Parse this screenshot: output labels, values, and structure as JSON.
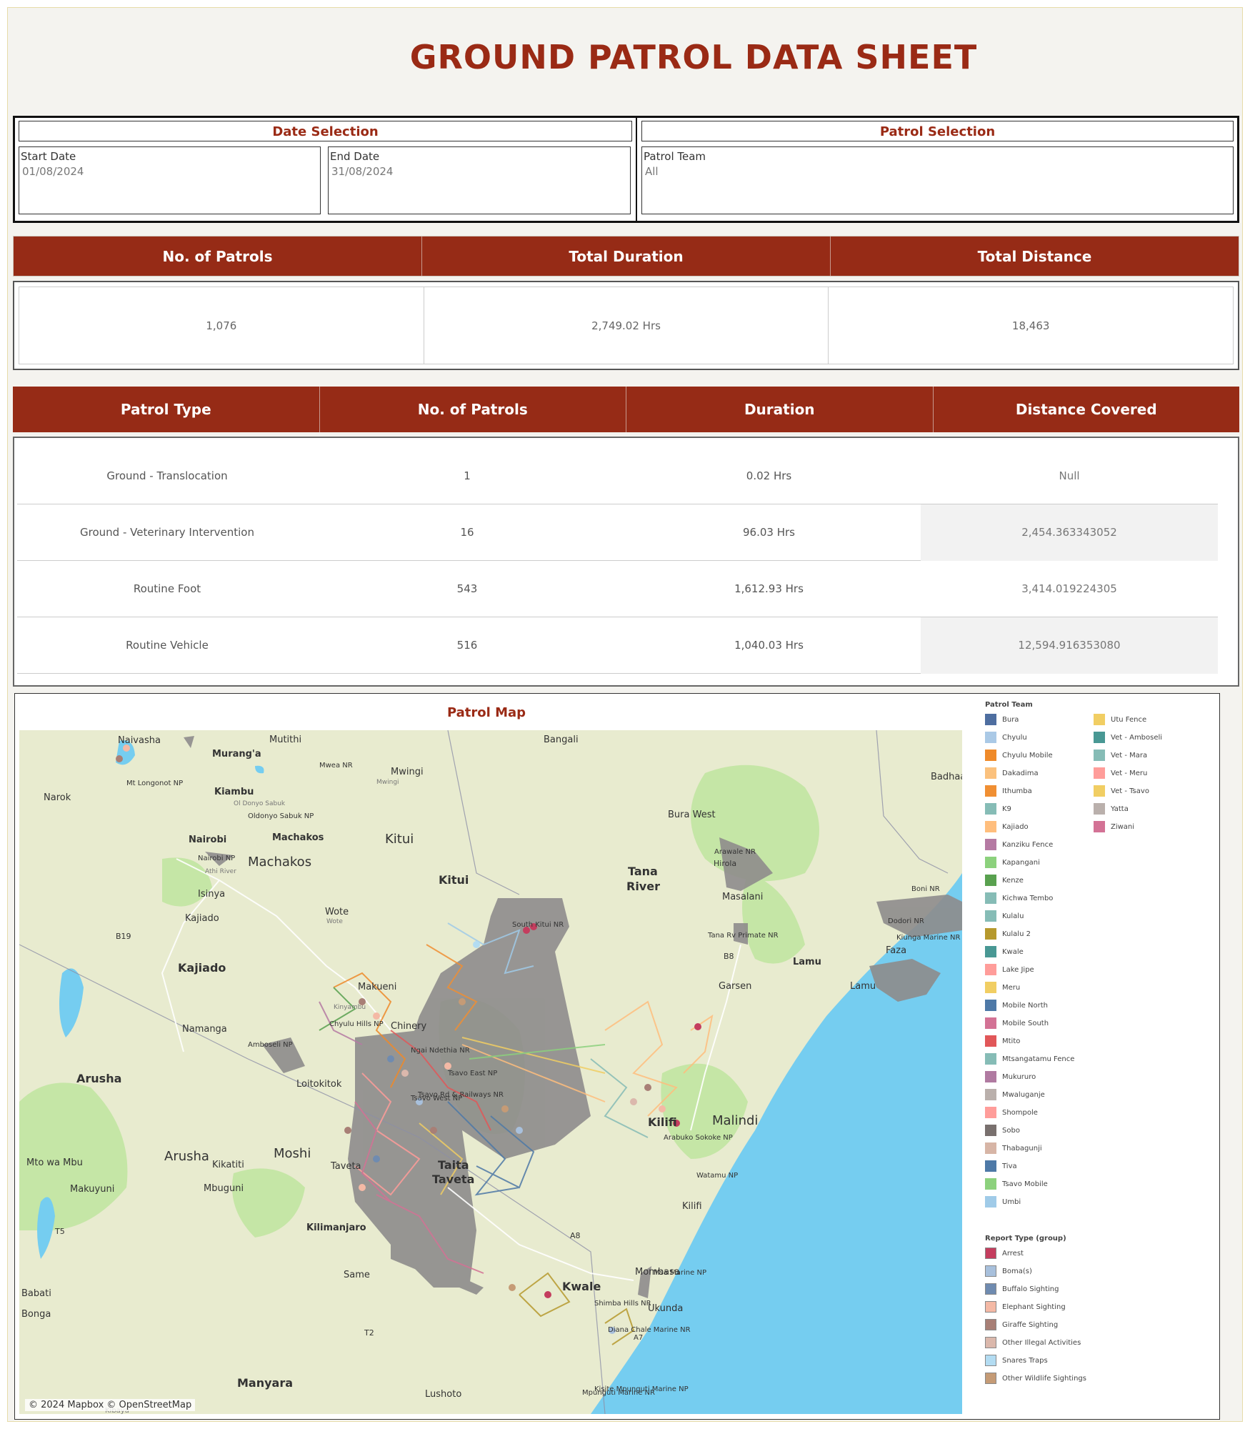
{
  "page": {
    "title": "GROUND PATROL DATA SHEET"
  },
  "filters": {
    "date_selection": {
      "heading": "Date Selection",
      "start_label": "Start Date",
      "start_value": "01/08/2024",
      "end_label": "End Date",
      "end_value": "31/08/2024"
    },
    "patrol_selection": {
      "heading": "Patrol Selection",
      "team_label": "Patrol Team",
      "team_value": "All"
    }
  },
  "kpis": {
    "headers": [
      "No. of Patrols",
      "Total Duration",
      "Total Distance"
    ],
    "values": [
      "1,076",
      "2,749.02 Hrs",
      "18,463"
    ]
  },
  "patrol_table": {
    "headers": [
      "Patrol Type",
      "No. of Patrols",
      "Duration",
      "Distance Covered"
    ],
    "rows": [
      [
        "Ground - Translocation",
        "1",
        "0.02 Hrs",
        "Null"
      ],
      [
        "Ground - Veterinary Intervention",
        "16",
        "96.03 Hrs",
        "2,454.363343052"
      ],
      [
        "Routine Foot",
        "543",
        "1,612.93 Hrs",
        "3,414.019224305"
      ],
      [
        "Routine Vehicle",
        "516",
        "1,040.03 Hrs",
        "12,594.916353080"
      ]
    ]
  },
  "map": {
    "title": "Patrol Map",
    "attribution": "© 2024 Mapbox © OpenStreetMap",
    "place_labels": {
      "l1": "Naivasha",
      "l2": "Mutithi",
      "l3": "Bangali",
      "l4": "Murang'a",
      "l5": "Mwea NR",
      "l6": "Mwingi",
      "l7": "Mt Longonot NP",
      "l8": "Narok",
      "l9": "Kiambu",
      "l10": "Oldonyo Sabuk NP",
      "l11": "Bura West",
      "l12": "Badhaa",
      "l13": "Nairobi",
      "l14": "Machakos",
      "l15": "Kitui",
      "l16": "Arawale NR",
      "l17": "Nairobi NP",
      "l18": "Machakos",
      "l19": "Tana",
      "l20": "River",
      "l21": "Kitui",
      "l22": "Masalani",
      "l23": "Boni NR",
      "l24": "Isinya",
      "l25": "Wote",
      "l26": "Kajiado",
      "l27": "South Kitui NR",
      "l28": "Dodori NR",
      "l29": "B19",
      "l30": "Tana Rv Primate NR",
      "l31": "Kiunga Marine NR",
      "l32": "Faza",
      "l33": "B8",
      "l34": "Kajiado",
      "l35": "Lamu",
      "l36": "Makueni",
      "l37": "Garsen",
      "l38": "Lamu",
      "l39": "Chyulu Hills NP",
      "l40": "Namanga",
      "l41": "Amboseli NP",
      "l42": "Ngai Ndethia NR",
      "l43": "Tsavo East NP",
      "l44": "Arusha",
      "l45": "Loitokitok",
      "l46": "Tsavo Rd & Railways NR",
      "l47": "Tsavo West NP",
      "l48": "Malindi",
      "l49": "Kilifi",
      "l50": "Arabuko Sokoke NP",
      "l51": "Arusha",
      "l52": "Moshi",
      "l53": "Kikatiti",
      "l54": "Taveta",
      "l55": "Taita",
      "l56": "Taveta",
      "l57": "Watamu NP",
      "l58": "Mto wa Mbu",
      "l59": "Makuyuni",
      "l60": "Mbuguni",
      "l61": "Kilifi",
      "l62": "T5",
      "l63": "Kilimanjaro",
      "l64": "A8",
      "l65": "Same",
      "l66": "Mombasa",
      "l67": "Msa Marine NP",
      "l68": "Kwale",
      "l69": "Babati",
      "l70": "Shimba Hills NR",
      "l71": "Ukunda",
      "l72": "Bonga",
      "l73": "T2",
      "l74": "Diana Chale Marine NR",
      "l75": "A7",
      "l76": "Manyara",
      "l77": "Lushoto",
      "l78": "Kisite Mpunguti Marine NP",
      "l79": "Mpunguti Marine NR",
      "l80": "Kibaya",
      "l81": "Ol Donyo Sabuk",
      "l82": "Mwingi",
      "l83": "Athi River",
      "l84": "Wote",
      "l85": "Kinyambu",
      "l86": "Hirola",
      "l87": "Chinery"
    },
    "patrol_team_title": "Patrol Team",
    "patrol_teams": [
      {
        "name": "Bura",
        "color": "#4e6ea0"
      },
      {
        "name": "Chyulu",
        "color": "#aac9e6"
      },
      {
        "name": "Chyulu Mobile",
        "color": "#ef8a2a"
      },
      {
        "name": "Dakadima",
        "color": "#fbc17d"
      },
      {
        "name": "Ithumba",
        "color": "#f08f33"
      },
      {
        "name": "K9",
        "color": "#86bcb6"
      },
      {
        "name": "Kajiado",
        "color": "#ffbe7d"
      },
      {
        "name": "Kanziku Fence",
        "color": "#b57aa3"
      },
      {
        "name": "Kapangani",
        "color": "#8cd17d"
      },
      {
        "name": "Kenze",
        "color": "#59a14f"
      },
      {
        "name": "Kichwa Tembo",
        "color": "#86bcb6"
      },
      {
        "name": "Kulalu",
        "color": "#86bcb6"
      },
      {
        "name": "Kulalu 2",
        "color": "#b6992d"
      },
      {
        "name": "Kwale",
        "color": "#499894"
      },
      {
        "name": "Lake Jipe",
        "color": "#ff9d9a"
      },
      {
        "name": "Meru",
        "color": "#f1ce63"
      },
      {
        "name": "Mobile North",
        "color": "#4e79a7"
      },
      {
        "name": "Mobile South",
        "color": "#d37295"
      },
      {
        "name": "Mtito",
        "color": "#e15759"
      },
      {
        "name": "Mtsangatamu Fence",
        "color": "#86bcb6"
      },
      {
        "name": "Mukururo",
        "color": "#b07aa1"
      },
      {
        "name": "Mwaluganje",
        "color": "#bab0ac"
      },
      {
        "name": "Shompole",
        "color": "#ff9d9a"
      },
      {
        "name": "Sobo",
        "color": "#79706e"
      },
      {
        "name": "Thabagunji",
        "color": "#d7b5a6"
      },
      {
        "name": "Tiva",
        "color": "#4e79a7"
      },
      {
        "name": "Tsavo Mobile",
        "color": "#8cd17d"
      },
      {
        "name": "Umbi",
        "color": "#a0cbe8"
      },
      {
        "name": "Utu Fence",
        "color": "#f1ce63"
      },
      {
        "name": "Vet - Amboseli",
        "color": "#499894"
      },
      {
        "name": "Vet - Mara",
        "color": "#86bcb6"
      },
      {
        "name": "Vet - Meru",
        "color": "#ff9d9a"
      },
      {
        "name": "Vet - Tsavo",
        "color": "#f1ce63"
      },
      {
        "name": "Yatta",
        "color": "#bab0ac"
      },
      {
        "name": "Ziwani",
        "color": "#d37295"
      }
    ],
    "report_type_title": "Report Type (group)",
    "report_types": [
      {
        "name": "Arrest",
        "color": "#c43d5e"
      },
      {
        "name": "Boma(s)",
        "color": "#a8c0dc"
      },
      {
        "name": "Buffalo Sighting",
        "color": "#6f8bb0"
      },
      {
        "name": "Elephant Sighting",
        "color": "#f4b9a5"
      },
      {
        "name": "Giraffe Sighting",
        "color": "#a87f76"
      },
      {
        "name": "Other Illegal Activities",
        "color": "#dbb8ac"
      },
      {
        "name": "Snares Traps",
        "color": "#b3dcf2"
      },
      {
        "name": "Other Wildlife Sightings",
        "color": "#c59b76"
      }
    ]
  },
  "colors": {
    "accent": "#962b16",
    "title": "#9a2a15",
    "ocean": "#75cdf0",
    "land": "#e8ebcf",
    "park": "#c5e6a6",
    "reserve_gray": "#8a8a8a"
  }
}
